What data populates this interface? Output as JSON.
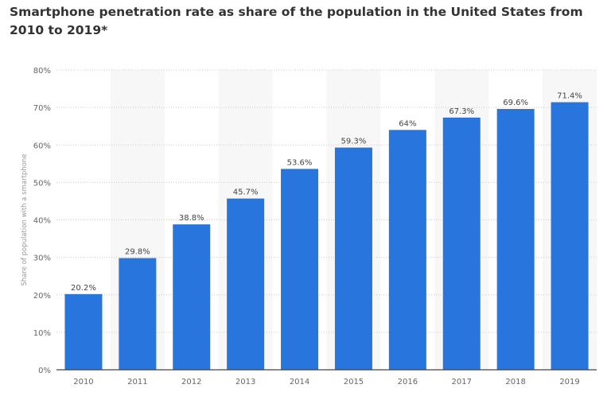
{
  "chart_data": {
    "type": "bar",
    "title": "Smartphone penetration rate as share of the population in the United States from 2010 to 2019*",
    "xlabel": "",
    "ylabel": "Share of population with a smartphone",
    "categories": [
      "2010",
      "2011",
      "2012",
      "2013",
      "2014",
      "2015",
      "2016",
      "2017",
      "2018",
      "2019"
    ],
    "values": [
      20.2,
      29.8,
      38.8,
      45.7,
      53.6,
      59.3,
      64,
      67.3,
      69.6,
      71.4
    ],
    "data_labels": [
      "20.2%",
      "29.8%",
      "38.8%",
      "45.7%",
      "53.6%",
      "59.3%",
      "64%",
      "67.3%",
      "69.6%",
      "71.4%"
    ],
    "yticks": [
      "0%",
      "10%",
      "20%",
      "30%",
      "40%",
      "50%",
      "60%",
      "70%",
      "80%"
    ],
    "ylim": [
      0,
      80
    ],
    "grid": true,
    "bar_color": "#2876dd"
  }
}
